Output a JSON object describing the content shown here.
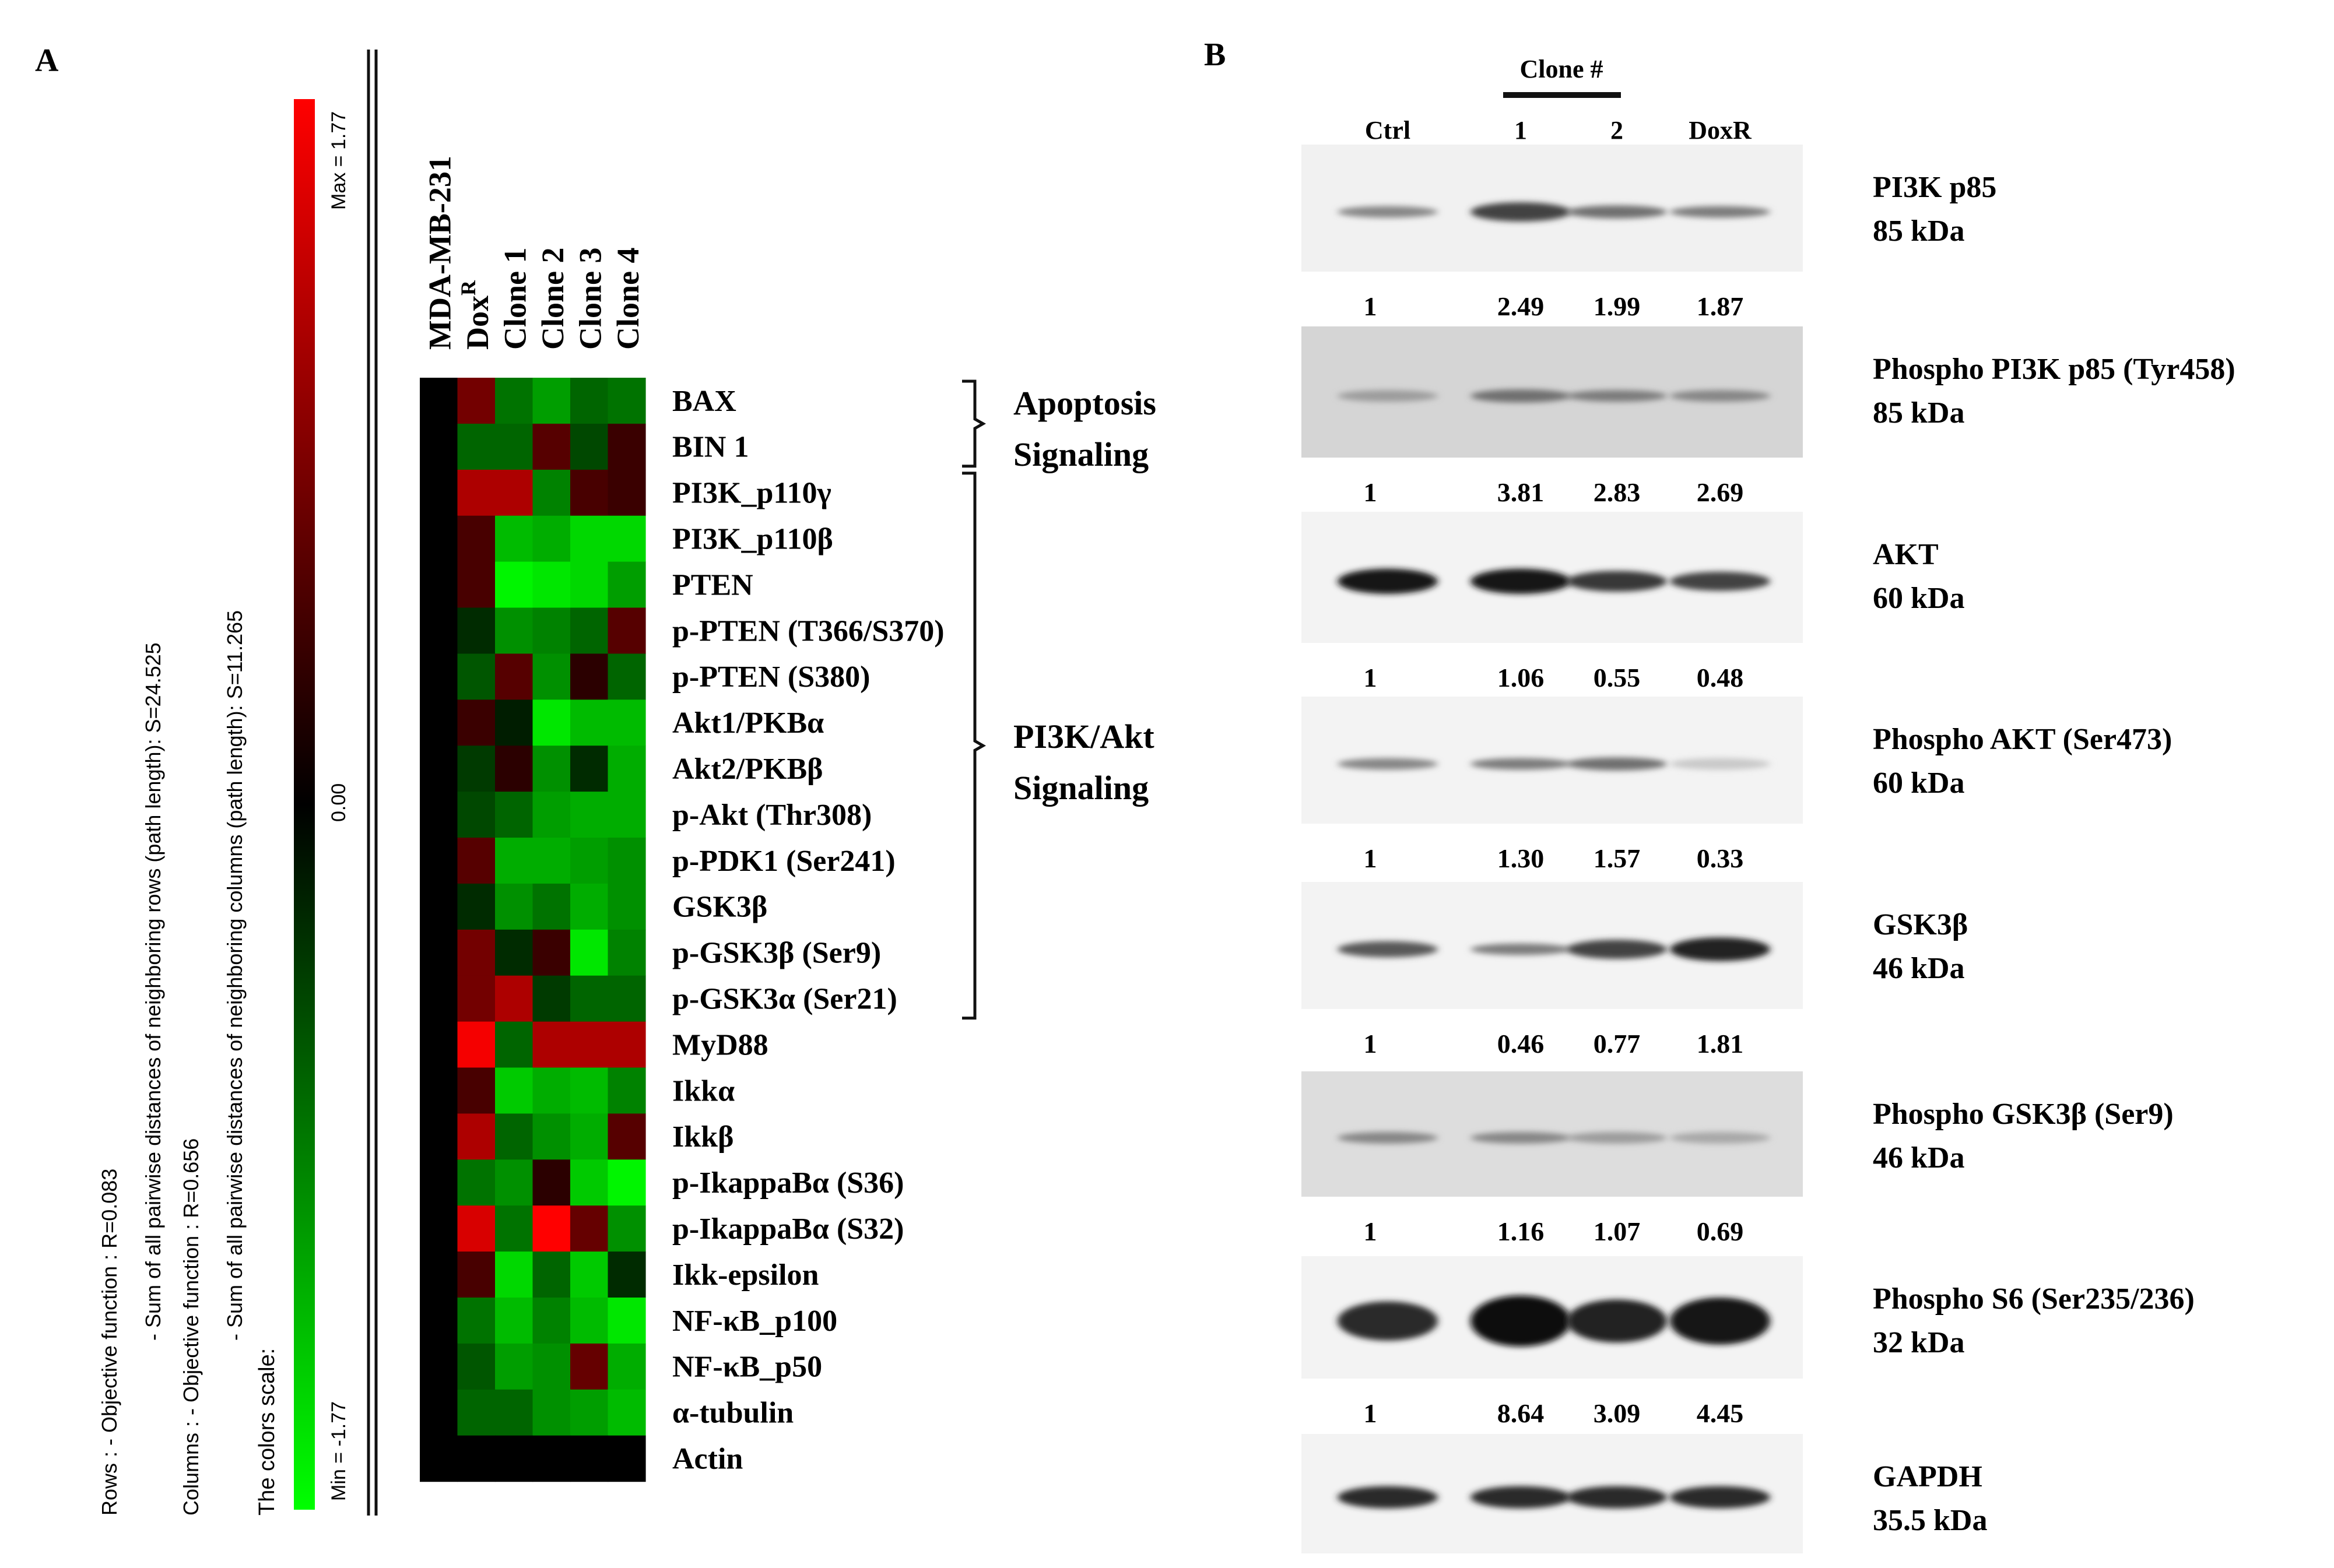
{
  "panel_a": {
    "label": "A",
    "sample_header": "MDA-MB-231",
    "column_labels": [
      "Dox",
      "Clone 1",
      "Clone 2",
      "Clone 3",
      "Clone 4"
    ],
    "dox_superscript": "R",
    "scale": {
      "max_label": "Max = 1.77",
      "zero_label": "0.00",
      "min_label": "Min = -1.77",
      "colors": {
        "max": "#ff0000",
        "zero": "#000000",
        "min": "#00ff00"
      }
    },
    "legend_lines": [
      "Rows :          - Objective function : R=0.083",
      "- Sum of all pairwise distances of neighboring rows (path length): S=24.525",
      "Columns :       - Objective function : R=0.656",
      "- Sum of all pairwise distances of neighboring columns (path length): S=11.265",
      "The colors scale:"
    ],
    "row_labels": [
      "BAX",
      "BIN 1",
      "PI3K_p110γ",
      "PI3K_p110β",
      "PTEN",
      "p-PTEN (T366/S370)",
      "p-PTEN (S380)",
      "Akt1/PKBα",
      "Akt2/PKBβ",
      "p-Akt (Thr308)",
      "p-PDK1 (Ser241)",
      "GSK3β",
      "p-GSK3β (Ser9)",
      "p-GSK3α (Ser21)",
      "MyD88",
      "Ikkα",
      "Ikkβ",
      "p-IkappaBα (S36)",
      "p-IkappaBα (S32)",
      "Ikk-epsilon",
      "NF-κB_p100",
      "NF-κB_p50",
      "α-tubulin",
      "Actin"
    ],
    "groups": [
      {
        "label_line1": "Apoptosis",
        "label_line2": "Signaling",
        "first_row": 0,
        "last_row": 1
      },
      {
        "label_line1": "PI3K/Akt",
        "label_line2": "Signaling",
        "first_row": 2,
        "last_row": 13
      }
    ],
    "heatmap_values": [
      [
        0.0,
        0.8,
        -0.8,
        -1.1,
        -0.7,
        -0.8
      ],
      [
        0.0,
        -0.7,
        -0.7,
        0.6,
        -0.5,
        0.4
      ],
      [
        0.0,
        1.2,
        1.2,
        -0.9,
        0.5,
        0.4
      ],
      [
        0.0,
        0.5,
        -1.3,
        -1.2,
        -1.5,
        -1.5
      ],
      [
        0.0,
        0.5,
        -1.7,
        -1.6,
        -1.5,
        -1.1
      ],
      [
        0.0,
        -0.3,
        -1.0,
        -0.9,
        -0.7,
        0.6
      ],
      [
        0.0,
        -0.6,
        0.6,
        -1.0,
        0.3,
        -0.7
      ],
      [
        0.0,
        0.4,
        -0.2,
        -1.6,
        -1.3,
        -1.3
      ],
      [
        0.0,
        -0.4,
        0.3,
        -1.0,
        -0.3,
        -1.2
      ],
      [
        0.0,
        -0.5,
        -0.7,
        -1.1,
        -1.2,
        -1.2
      ],
      [
        0.0,
        0.6,
        -1.2,
        -1.2,
        -1.1,
        -1.0
      ],
      [
        0.0,
        -0.3,
        -1.0,
        -0.8,
        -1.2,
        -1.0
      ],
      [
        0.0,
        0.8,
        -0.3,
        0.4,
        -1.6,
        -0.9
      ],
      [
        0.0,
        0.8,
        1.2,
        -0.4,
        -0.7,
        -0.7
      ],
      [
        0.0,
        1.7,
        -0.7,
        1.2,
        1.2,
        1.2
      ],
      [
        0.0,
        0.5,
        -1.4,
        -1.2,
        -1.3,
        -0.9
      ],
      [
        0.0,
        1.2,
        -0.7,
        -1.0,
        -1.2,
        0.6
      ],
      [
        0.0,
        -0.8,
        -1.0,
        0.3,
        -1.4,
        -1.7
      ],
      [
        0.0,
        1.5,
        -0.8,
        1.77,
        0.7,
        -1.0
      ],
      [
        0.0,
        0.5,
        -1.5,
        -0.7,
        -1.4,
        -0.3
      ],
      [
        0.0,
        -0.8,
        -1.3,
        -0.9,
        -1.3,
        -1.6
      ],
      [
        0.0,
        -0.6,
        -1.1,
        -1.0,
        0.7,
        -1.2
      ],
      [
        0.0,
        -0.7,
        -0.7,
        -1.0,
        -1.1,
        -1.3
      ],
      [
        0.0,
        0.0,
        0.0,
        0.0,
        0.0,
        0.0
      ]
    ]
  },
  "panel_b": {
    "label": "B",
    "clone_header": "Clone #",
    "lane_labels": [
      "Ctrl",
      "1",
      "2",
      "DoxR"
    ],
    "blots": [
      {
        "protein": "PI3K p85",
        "size": "85 kDa",
        "values": [
          "1",
          "2.49",
          "1.99",
          "1.87"
        ],
        "band_intensity": [
          0.45,
          0.75,
          0.55,
          0.5
        ],
        "background": 0.12
      },
      {
        "protein": "Phospho PI3K p85 (Tyr458)",
        "size": "85 kDa",
        "values": [
          "1",
          "3.81",
          "2.83",
          "2.69"
        ],
        "band_intensity": [
          0.35,
          0.55,
          0.5,
          0.45
        ],
        "background": 0.35
      },
      {
        "protein": "AKT",
        "size": "60 kDa",
        "values": [
          "1",
          "1.06",
          "0.55",
          "0.48"
        ],
        "band_intensity": [
          0.95,
          0.95,
          0.8,
          0.75
        ],
        "background": 0.1
      },
      {
        "protein": "Phospho AKT  (Ser473)",
        "size": "60 kDa",
        "values": [
          "1",
          "1.30",
          "1.57",
          "0.33"
        ],
        "band_intensity": [
          0.45,
          0.5,
          0.55,
          0.15
        ],
        "background": 0.1
      },
      {
        "protein": "GSK3β",
        "size": "46 kDa",
        "values": [
          "1",
          "0.46",
          "0.77",
          "1.81"
        ],
        "band_intensity": [
          0.65,
          0.5,
          0.75,
          0.9
        ],
        "background": 0.1
      },
      {
        "protein": "Phospho GSK3β (Ser9)",
        "size": "46 kDa",
        "values": [
          "1",
          "1.16",
          "1.07",
          "0.69"
        ],
        "band_intensity": [
          0.45,
          0.45,
          0.35,
          0.3
        ],
        "background": 0.28
      },
      {
        "protein": "Phospho S6 (Ser235/236)",
        "size": "32 kDa",
        "values": [
          "1",
          "8.64",
          "3.09",
          "4.45"
        ],
        "band_intensity": [
          0.85,
          1.0,
          0.9,
          0.95
        ],
        "background": 0.1
      },
      {
        "protein": "GAPDH",
        "size": "35.5 kDa",
        "values": [],
        "band_intensity": [
          0.85,
          0.85,
          0.85,
          0.85
        ],
        "background": 0.1
      }
    ]
  }
}
